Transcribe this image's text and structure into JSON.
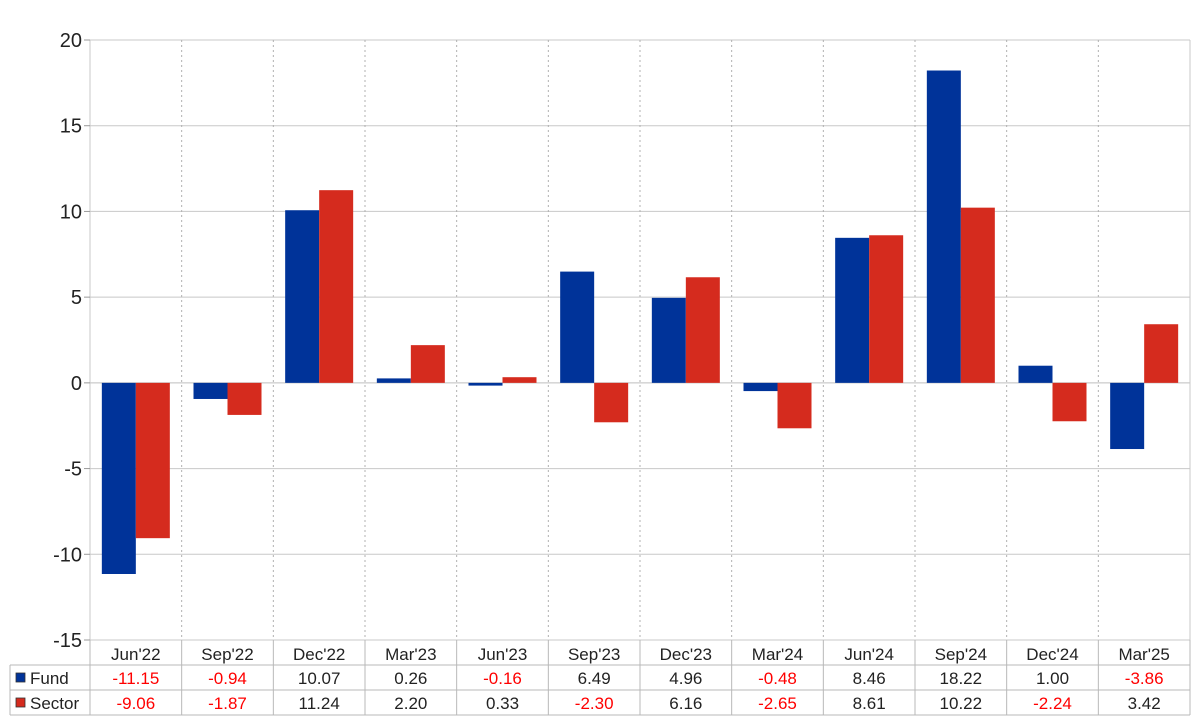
{
  "chart_data": {
    "type": "bar",
    "categories": [
      "Jun'22",
      "Sep'22",
      "Dec'22",
      "Mar'23",
      "Jun'23",
      "Sep'23",
      "Dec'23",
      "Mar'24",
      "Jun'24",
      "Sep'24",
      "Dec'24",
      "Mar'25"
    ],
    "series": [
      {
        "name": "Fund",
        "color": "#003399",
        "values": [
          -11.15,
          -0.94,
          10.07,
          0.26,
          -0.16,
          6.49,
          4.96,
          -0.48,
          8.46,
          18.22,
          1.0,
          -3.86
        ],
        "labels": [
          "-11.15",
          "-0.94",
          "10.07",
          "0.26",
          "-0.16",
          "6.49",
          "4.96",
          "-0.48",
          "8.46",
          "18.22",
          "1.00",
          "-3.86"
        ]
      },
      {
        "name": "Sector",
        "color": "#d52b1e",
        "values": [
          -9.06,
          -1.87,
          11.24,
          2.2,
          0.33,
          -2.3,
          6.16,
          -2.65,
          8.61,
          10.22,
          -2.24,
          3.42
        ],
        "labels": [
          "-9.06",
          "-1.87",
          "11.24",
          "2.20",
          "0.33",
          "-2.30",
          "6.16",
          "-2.65",
          "8.61",
          "10.22",
          "-2.24",
          "3.42"
        ]
      }
    ],
    "y_ticks": [
      "20",
      "15",
      "10",
      "5",
      "0",
      "-5",
      "-10",
      "-15"
    ],
    "ylim": [
      -15,
      20
    ],
    "title": "",
    "xlabel": "",
    "ylabel": "",
    "grid": true,
    "legend": "bottom-left table",
    "negative_color": "#ff0000",
    "positive_color": "#222222"
  }
}
